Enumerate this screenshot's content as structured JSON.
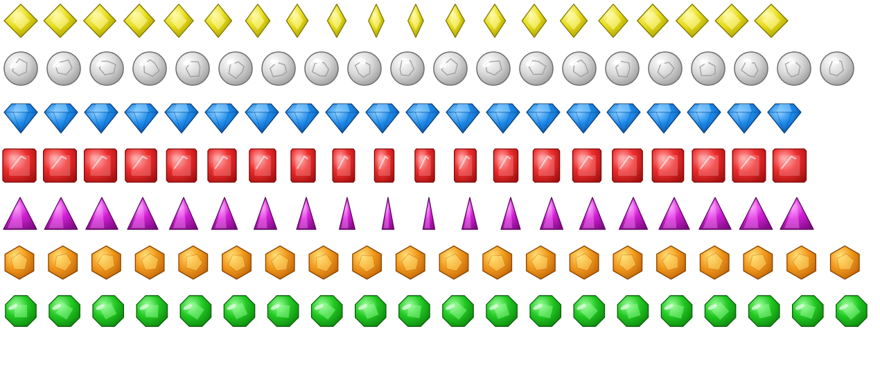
{
  "sprite_sheet": {
    "rows": [
      {
        "gem": "yellow-diamond-gem",
        "frames": 20,
        "colors": {
          "light": "#fffcae",
          "base": "#e6db18",
          "dark": "#9c9200",
          "edge": "#7f7600"
        }
      },
      {
        "gem": "white-sphere-gem",
        "frames": 20,
        "colors": {
          "light": "#ffffff",
          "base": "#d9d9d9",
          "dark": "#8f8f8f",
          "edge": "#6e6e6e"
        }
      },
      {
        "gem": "blue-brilliant-gem",
        "frames": 20,
        "colors": {
          "light": "#8fd0ff",
          "base": "#1e8ae8",
          "dark": "#0a4f9e",
          "edge": "#083d7a"
        }
      },
      {
        "gem": "red-square-gem",
        "frames": 20,
        "colors": {
          "light": "#ffb3b3",
          "base": "#ee2d2d",
          "dark": "#a30f0f",
          "edge": "#7d0a0a"
        }
      },
      {
        "gem": "purple-triangle-gem",
        "frames": 20,
        "colors": {
          "light": "#ffa6ff",
          "base": "#d11fd3",
          "dark": "#7e0b82",
          "edge": "#5e0862"
        }
      },
      {
        "gem": "orange-hexagon-gem",
        "frames": 20,
        "colors": {
          "light": "#ffe27a",
          "base": "#f39a1c",
          "dark": "#b55a05",
          "edge": "#8a4403"
        }
      },
      {
        "gem": "green-octagon-gem",
        "frames": 20,
        "colors": {
          "light": "#9dff9d",
          "base": "#22c922",
          "dark": "#0b7d0b",
          "edge": "#085f08"
        }
      }
    ]
  }
}
